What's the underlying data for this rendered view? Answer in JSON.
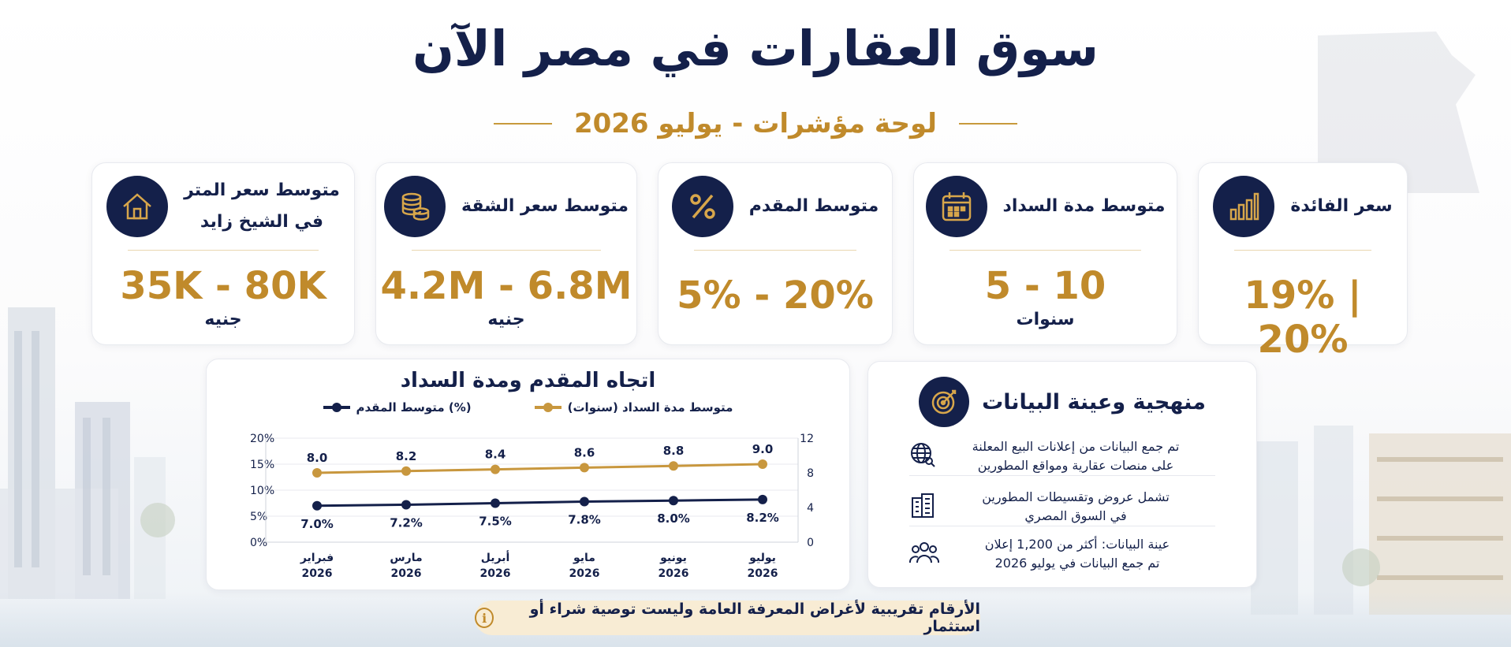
{
  "title": "سوق العقارات في مصر الآن",
  "subtitle": "لوحة مؤشرات - يوليو 2026",
  "kpis": [
    {
      "label": "سعر الفائدة",
      "value": "19% | 20%",
      "unit": "",
      "icon": "bar-chart-icon"
    },
    {
      "label": "متوسط مدة السداد",
      "value": "5 - 10",
      "unit": "سنوات",
      "icon": "calendar-icon"
    },
    {
      "label": "متوسط المقدم",
      "value": "5% - 20%",
      "unit": "",
      "icon": "percent-icon"
    },
    {
      "label": "متوسط سعر الشقة",
      "value": "4.2M - 6.8M",
      "unit": "جنيه",
      "icon": "coins-icon"
    },
    {
      "label": "متوسط سعر المتر في الشيخ زايد",
      "label_line1": "متوسط سعر المتر",
      "label_line2": "في الشيخ زايد",
      "value": "35K - 80K",
      "unit": "جنيه",
      "icon": "house-icon"
    }
  ],
  "chart_data": {
    "type": "line",
    "title": "اتجاه المقدم ومدة السداد",
    "categories": [
      "فبراير 2026",
      "مارس 2026",
      "أبريل 2026",
      "مايو 2026",
      "يونيو 2026",
      "يوليو 2026"
    ],
    "category_lines": [
      [
        "فبراير",
        "2026"
      ],
      [
        "مارس",
        "2026"
      ],
      [
        "أبريل",
        "2026"
      ],
      [
        "مايو",
        "2026"
      ],
      [
        "يونيو",
        "2026"
      ],
      [
        "يوليو",
        "2026"
      ]
    ],
    "series": [
      {
        "name": "متوسط مدة السداد (سنوات)",
        "values": [
          8.0,
          8.2,
          8.4,
          8.6,
          8.8,
          9.0
        ],
        "labels": [
          "8.0",
          "8.2",
          "8.4",
          "8.6",
          "8.8",
          "9.0"
        ],
        "axis": "right",
        "color": "#c8973e"
      },
      {
        "name": "متوسط المقدم (%)",
        "values": [
          7.0,
          7.2,
          7.5,
          7.8,
          8.0,
          8.2
        ],
        "labels": [
          "7.0%",
          "7.2%",
          "7.5%",
          "7.8%",
          "8.0%",
          "8.2%"
        ],
        "axis": "left",
        "color": "#14204a"
      }
    ],
    "left_axis": {
      "ylim": [
        0,
        20
      ],
      "ticks": [
        "0%",
        "5%",
        "10%",
        "15%",
        "20%"
      ]
    },
    "right_axis": {
      "ylim": [
        0,
        12
      ],
      "ticks": [
        "0",
        "4",
        "8",
        "12"
      ]
    },
    "grid": true,
    "legend": "top"
  },
  "methodology": {
    "title": "منهجية وعينة البيانات",
    "icon": "target-icon",
    "items": [
      {
        "icon": "globe-icon",
        "line1": "تم جمع البيانات من إعلانات البيع المعلنة",
        "line2": "على منصات عقارية ومواقع المطورين"
      },
      {
        "icon": "buildings-icon",
        "line1": "تشمل عروض وتقسيطات المطورين",
        "line2": "في السوق المصري"
      },
      {
        "icon": "people-icon",
        "line1": "عينة البيانات: أكثر من 1,200 إعلان",
        "line2": "تم جمع البيانات في يوليو 2026"
      }
    ]
  },
  "disclaimer": "الأرقام تقريبية لأغراض المعرفة العامة وليست توصية شراء أو استثمار",
  "colors": {
    "navy": "#14204a",
    "gold": "#c08a2b",
    "gold_line": "#c8973e"
  }
}
